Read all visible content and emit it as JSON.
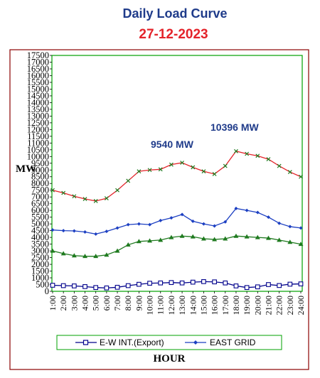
{
  "chart_data": {
    "type": "line",
    "title": "Daily Load Curve",
    "subtitle": "27-12-2023",
    "xlabel": "HOUR",
    "ylabel": "MW",
    "ylim": [
      0,
      17500
    ],
    "yticks": [
      0,
      500,
      1000,
      1500,
      2000,
      2500,
      3000,
      3500,
      4000,
      4500,
      5000,
      5500,
      6000,
      6500,
      7000,
      7500,
      8000,
      8500,
      9000,
      9500,
      10000,
      10500,
      11000,
      11500,
      12000,
      12500,
      13000,
      13500,
      14000,
      14500,
      15000,
      15500,
      16000,
      16500,
      17000,
      17500
    ],
    "categories": [
      "1:00",
      "2:00",
      "3:00",
      "4:00",
      "5:00",
      "6:00",
      "7:00",
      "8:00",
      "9:00",
      "10:00",
      "11:00",
      "12:00",
      "13:00",
      "14:00",
      "15:00",
      "16:00",
      "17:00",
      "18:00",
      "19:00",
      "20:00",
      "21:00",
      "22:00",
      "23:00",
      "24:00"
    ],
    "series": [
      {
        "name": "E-W INT.(Export)",
        "color": "#00008b",
        "marker": "square",
        "values": [
          450,
          420,
          400,
          350,
          280,
          250,
          300,
          420,
          520,
          600,
          620,
          650,
          620,
          680,
          720,
          700,
          620,
          400,
          280,
          330,
          500,
          430,
          530,
          550
        ]
      },
      {
        "name": "EAST GRID",
        "color": "#1c3fc2",
        "marker": "diamond",
        "values": [
          4550,
          4500,
          4480,
          4400,
          4250,
          4450,
          4700,
          4950,
          5000,
          4950,
          5250,
          5450,
          5700,
          5200,
          5000,
          4850,
          5150,
          6150,
          6000,
          5850,
          5500,
          5050,
          4800,
          4700
        ]
      },
      {
        "color": "#e4232a",
        "marker": "x",
        "values": [
          7500,
          7300,
          7050,
          6850,
          6700,
          6900,
          7500,
          8200,
          8900,
          9000,
          9050,
          9400,
          9540,
          9200,
          8900,
          8700,
          9300,
          10396,
          10200,
          10050,
          9800,
          9300,
          8850,
          8500
        ]
      },
      {
        "color": "#1f7a1f",
        "marker": "triangle",
        "values": [
          3000,
          2800,
          2650,
          2600,
          2600,
          2700,
          3000,
          3450,
          3700,
          3750,
          3800,
          4000,
          4100,
          4050,
          3900,
          3850,
          3900,
          4100,
          4050,
          4000,
          3950,
          3800,
          3650,
          3500
        ]
      }
    ],
    "annotations": [
      {
        "text": "9540 MW"
      },
      {
        "text": "10396 MW"
      }
    ],
    "grid": false,
    "legend": "bottom"
  }
}
